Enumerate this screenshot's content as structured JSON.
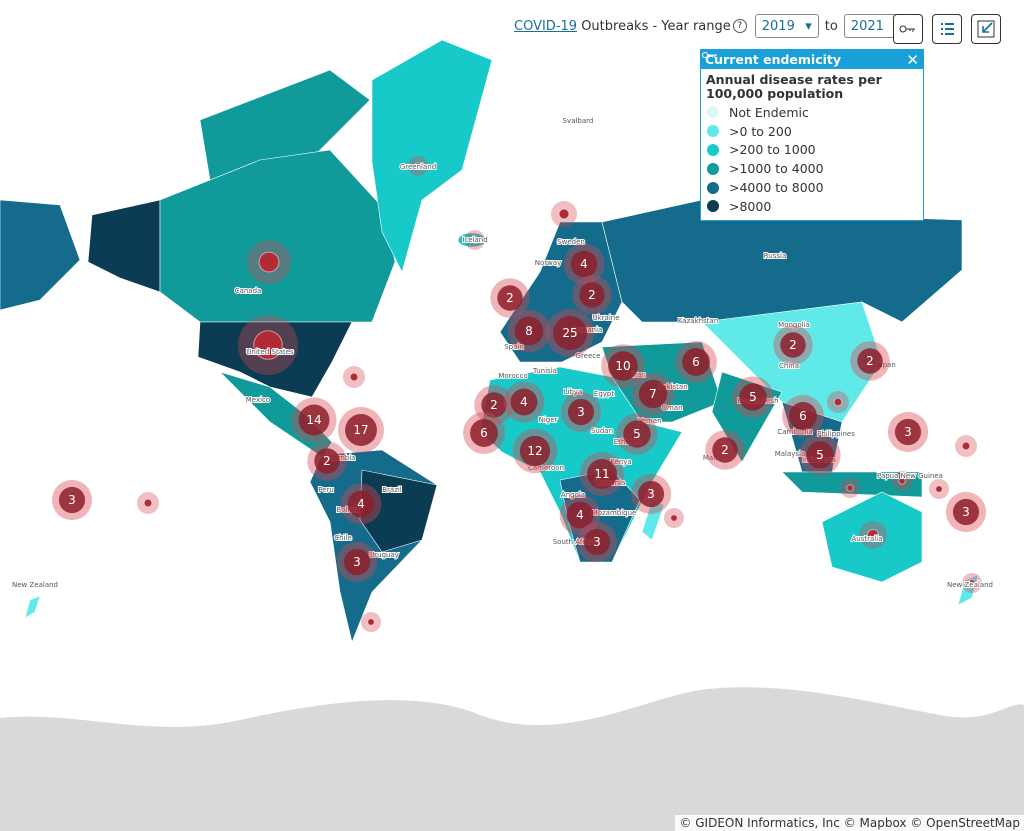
{
  "header": {
    "link": "COVID-19",
    "text": "Outbreaks - Year range",
    "help": "?",
    "from": "2019",
    "to_label": "to",
    "to": "2021"
  },
  "legend": {
    "title": "Current endemicity",
    "subtitle": "Annual disease rates per 100,000 population",
    "items": [
      {
        "label": "Not Endemic",
        "color": "#dcf6f6"
      },
      {
        "label": ">0 to 200",
        "color": "#5fe9e9"
      },
      {
        "label": ">200 to 1000",
        "color": "#17c9c9"
      },
      {
        "label": ">1000 to 4000",
        "color": "#109a9a"
      },
      {
        "label": ">4000 to 8000",
        "color": "#146b8b"
      },
      {
        "label": ">8000",
        "color": "#0c3c54"
      }
    ]
  },
  "clusters": [
    14,
    17,
    2,
    3,
    4,
    3,
    2,
    8,
    25,
    4,
    2,
    2,
    4,
    6,
    12,
    3,
    10,
    6,
    7,
    5,
    11,
    3,
    4,
    3,
    2,
    5,
    6,
    5,
    2,
    2,
    3,
    3
  ],
  "places": [
    "Greenland",
    "Svalbard",
    "Iceland",
    "Canada",
    "United States",
    "Mexico",
    "Colombia",
    "Peru",
    "Brazil",
    "Bolivia",
    "Chile",
    "Uruguay",
    "Sweden",
    "Norway",
    "Spain",
    "Ukraine",
    "Romania",
    "Greece",
    "Morocco",
    "Tunisia",
    "Libya",
    "Egypt",
    "Niger",
    "Sudan",
    "Ethiopia",
    "Yemen",
    "Cameroon",
    "Kenya",
    "Tanzania",
    "Angola",
    "Mozambique",
    "South Africa",
    "Iran",
    "Kazakhstan",
    "Pakistan",
    "Oman",
    "Mongolia",
    "China",
    "Japan",
    "Russia",
    "Bangladesh",
    "Cambodia",
    "Philippines",
    "Malaysia",
    "Indonesia",
    "Mali",
    "Papua New Guinea",
    "Australia",
    "New Zealand",
    "New Zealand"
  ],
  "attribution": "© GIDEON Informatics, Inc © Mapbox © OpenStreetMap"
}
